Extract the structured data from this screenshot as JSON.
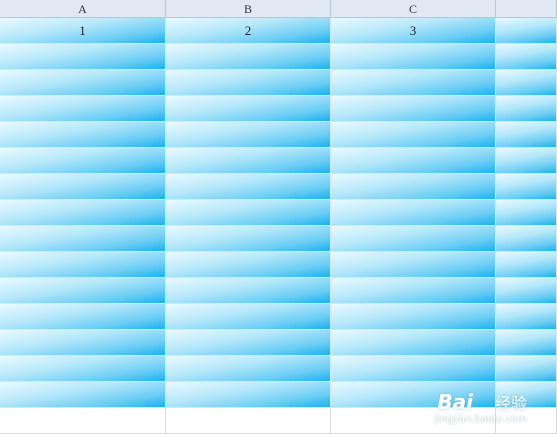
{
  "header": {
    "columns": [
      "A",
      "B",
      "C"
    ]
  },
  "table": {
    "rows": [
      [
        "1",
        "2",
        "3"
      ]
    ]
  },
  "watermark": {
    "brand": "Bai",
    "product": "经验",
    "url": "jingyan.baidu.com"
  }
}
